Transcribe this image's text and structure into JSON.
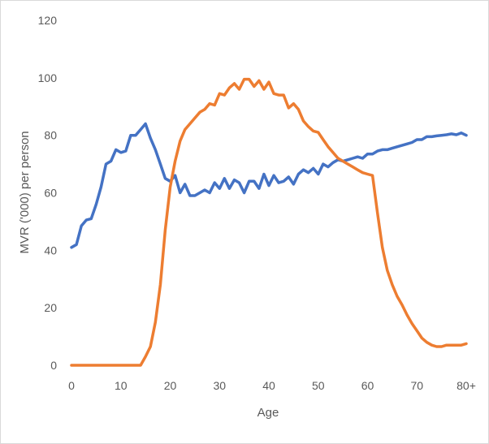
{
  "chart_data": {
    "type": "line",
    "title": "",
    "xlabel": "Age",
    "ylabel": "MVR ('000) per person",
    "xlim": [
      0,
      80
    ],
    "ylim": [
      0,
      120
    ],
    "y_ticks": [
      0,
      20,
      40,
      60,
      80,
      100,
      120
    ],
    "x_ticks": [
      {
        "value": 0,
        "label": "0"
      },
      {
        "value": 10,
        "label": "10"
      },
      {
        "value": 20,
        "label": "20"
      },
      {
        "value": 30,
        "label": "30"
      },
      {
        "value": 40,
        "label": "40"
      },
      {
        "value": 50,
        "label": "50"
      },
      {
        "value": 60,
        "label": "60"
      },
      {
        "value": 70,
        "label": "70"
      },
      {
        "value": 80,
        "label": "80+"
      }
    ],
    "grid": false,
    "legend": "none",
    "x": [
      0,
      1,
      2,
      3,
      4,
      5,
      6,
      7,
      8,
      9,
      10,
      11,
      12,
      13,
      14,
      15,
      16,
      17,
      18,
      19,
      20,
      21,
      22,
      23,
      24,
      25,
      26,
      27,
      28,
      29,
      30,
      31,
      32,
      33,
      34,
      35,
      36,
      37,
      38,
      39,
      40,
      41,
      42,
      43,
      44,
      45,
      46,
      47,
      48,
      49,
      50,
      51,
      52,
      53,
      54,
      55,
      56,
      57,
      58,
      59,
      60,
      61,
      62,
      63,
      64,
      65,
      66,
      67,
      68,
      69,
      70,
      71,
      72,
      73,
      74,
      75,
      76,
      77,
      78,
      79,
      80
    ],
    "series": [
      {
        "color": "#4472c4",
        "values": [
          41,
          42,
          48.5,
          50.5,
          51,
          56,
          62,
          70,
          71,
          75,
          74,
          74.5,
          80,
          80,
          82,
          84,
          79,
          75,
          70,
          65,
          64,
          66,
          60,
          63,
          59,
          59,
          60,
          61,
          60,
          63.5,
          61.5,
          65,
          61.5,
          64.5,
          63.5,
          60,
          64,
          64,
          61.5,
          66.5,
          62.5,
          66,
          63.5,
          64,
          65.5,
          63,
          66.5,
          68,
          67,
          68.5,
          66.5,
          70,
          69,
          70.5,
          71.5,
          71,
          71.5,
          72,
          72.5,
          72,
          73.5,
          73.5,
          74.5,
          75,
          75,
          75.5,
          76,
          76.5,
          77,
          77.5,
          78.5,
          78.5,
          79.5,
          79.5,
          79.8,
          80,
          80.2,
          80.5,
          80.2,
          80.8,
          80
        ]
      },
      {
        "color": "#ed7d31",
        "values": [
          0,
          0,
          0,
          0,
          0,
          0,
          0,
          0,
          0,
          0,
          0,
          0,
          0,
          0,
          0,
          3,
          6.5,
          15,
          28,
          47,
          62,
          71,
          78,
          82,
          84,
          86,
          88,
          89,
          91,
          90.5,
          94.5,
          94,
          96.5,
          98,
          96,
          99.5,
          99.5,
          97,
          99,
          96,
          98.5,
          94.5,
          94,
          94,
          89.5,
          91,
          89,
          85,
          83,
          81.5,
          81,
          78.5,
          76,
          74,
          72,
          71,
          70,
          69,
          68,
          67,
          66.5,
          66,
          53,
          41,
          33,
          28,
          24,
          21,
          17.5,
          14.5,
          12,
          9.5,
          8,
          7,
          6.5,
          6.5,
          7,
          7,
          7,
          7,
          7.5
        ]
      }
    ]
  }
}
